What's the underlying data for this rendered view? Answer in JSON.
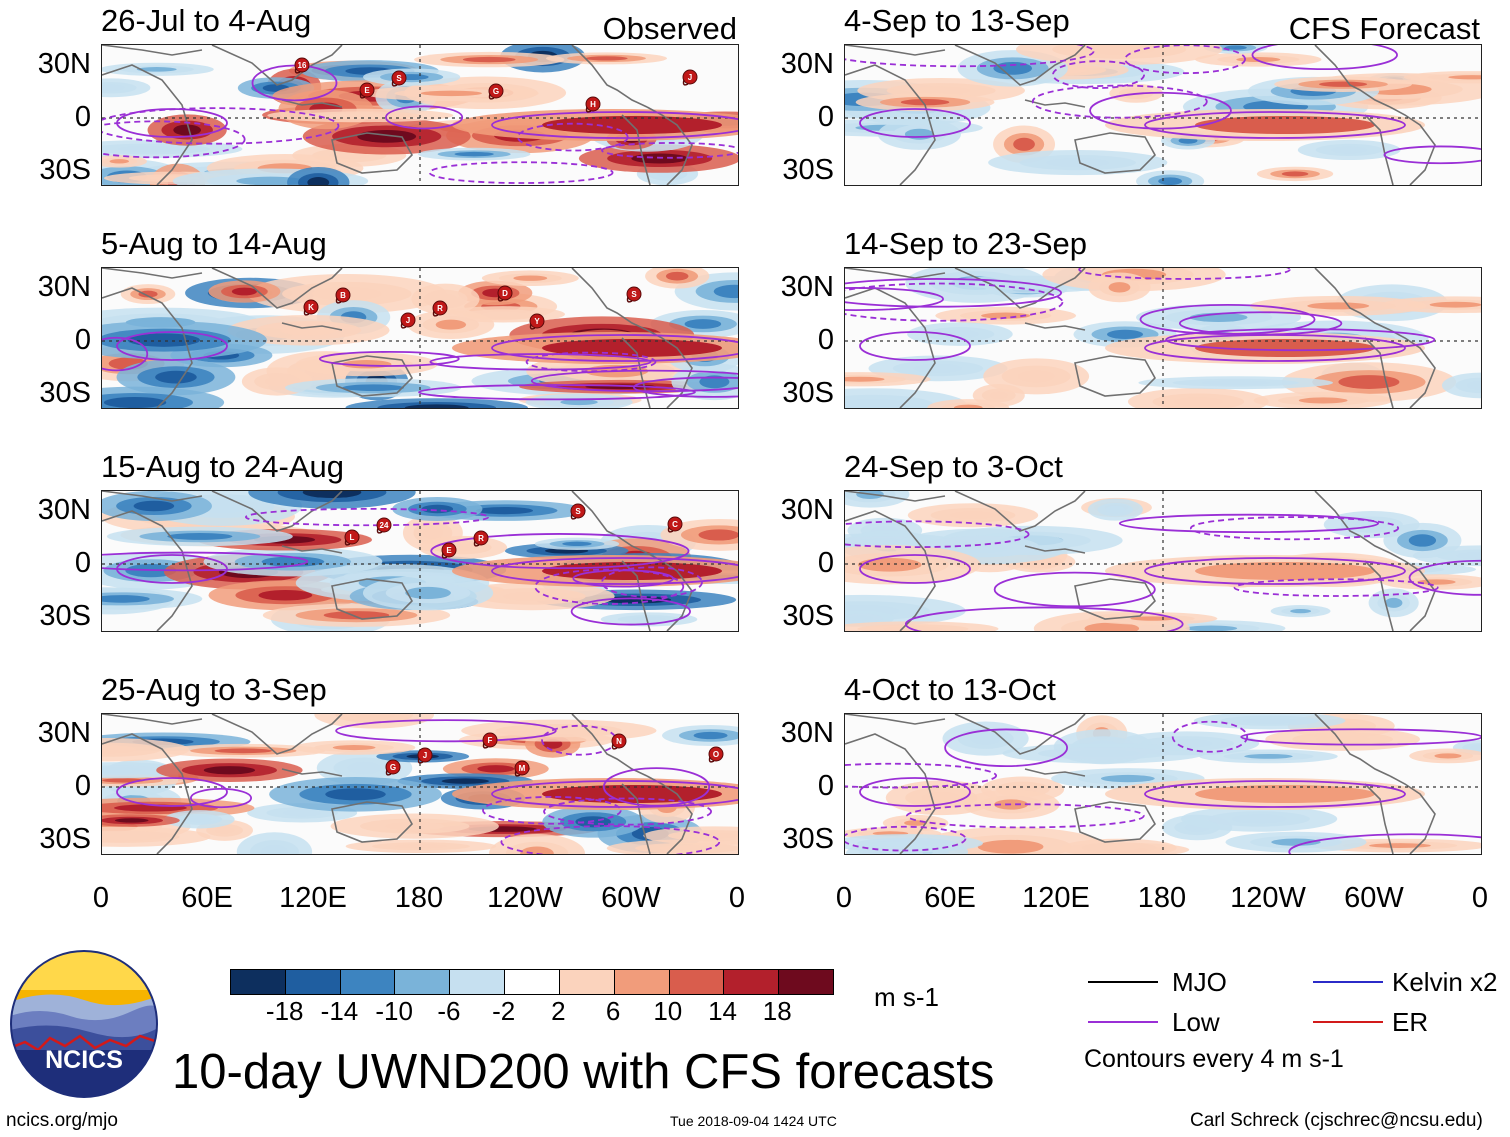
{
  "panels_left": [
    {
      "title": "26-Jul to 4-Aug",
      "label": "Observed"
    },
    {
      "title": "5-Aug to 14-Aug",
      "label": ""
    },
    {
      "title": "15-Aug to 24-Aug",
      "label": ""
    },
    {
      "title": "25-Aug to 3-Sep",
      "label": ""
    }
  ],
  "panels_right": [
    {
      "title": "4-Sep to 13-Sep",
      "label": "CFS Forecast"
    },
    {
      "title": "14-Sep to 23-Sep",
      "label": ""
    },
    {
      "title": "24-Sep to 3-Oct",
      "label": ""
    },
    {
      "title": "4-Oct to 13-Oct",
      "label": ""
    }
  ],
  "lat_labels": [
    "30N",
    "0",
    "30S"
  ],
  "lon_labels": [
    "0",
    "60E",
    "120E",
    "180",
    "120W",
    "60W",
    "0"
  ],
  "colorbar": {
    "ticks": [
      "-18",
      "-14",
      "-10",
      "-6",
      "-2",
      "2",
      "6",
      "10",
      "14",
      "18"
    ],
    "colors": [
      "#0d2f5e",
      "#1f5ea0",
      "#3d84c0",
      "#7ab3d9",
      "#c6e0f0",
      "#ffffff",
      "#fbd3bd",
      "#f19c7b",
      "#d95d4d",
      "#b3202c",
      "#6e0a1e"
    ],
    "units": "m s-1"
  },
  "title": "10-day UWND200 with CFS forecasts",
  "legend": {
    "items": [
      {
        "label": "MJO",
        "color": "#000000"
      },
      {
        "label": "Kelvin x2",
        "color": "#2b2bc8"
      },
      {
        "label": "Low",
        "color": "#9a2fd6"
      },
      {
        "label": "ER",
        "color": "#d21a1a"
      }
    ],
    "note": "Contours every 4 m s-1"
  },
  "logo_text": "NCICS",
  "footer": {
    "url": "ncics.org/mjo",
    "timestamp": "Tue 2018-09-04 1424 UTC",
    "credit": "Carl Schreck (cjschrec@ncsu.edu)"
  },
  "storm_markers": {
    "panel1": [
      "16",
      "S",
      "G",
      "H",
      "J",
      "E"
    ],
    "panel2": [
      "B",
      "R",
      "Y",
      "S",
      "K",
      "J",
      "D"
    ],
    "panel3": [
      "24",
      "R",
      "S",
      "C",
      "L",
      "E"
    ],
    "panel4": [
      "J",
      "M",
      "N",
      "O",
      "G",
      "F"
    ]
  }
}
